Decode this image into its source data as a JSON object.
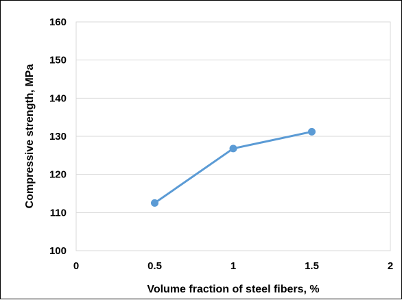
{
  "chart_data": {
    "type": "line",
    "title": "",
    "xlabel": "Volume fraction of steel fibers, %",
    "ylabel": "Compressive strength, MPa",
    "xlim": [
      0,
      2
    ],
    "ylim": [
      100,
      160
    ],
    "x_ticks": [
      0,
      0.5,
      1,
      1.5,
      2
    ],
    "y_ticks": [
      100,
      110,
      120,
      130,
      140,
      150,
      160
    ],
    "grid": true,
    "legend": "none",
    "series": [
      {
        "x": [
          0.5,
          1,
          1.5
        ],
        "values": [
          112.5,
          126.8,
          131.2
        ],
        "color": "#5B9BD5",
        "marker": "circle"
      }
    ]
  }
}
